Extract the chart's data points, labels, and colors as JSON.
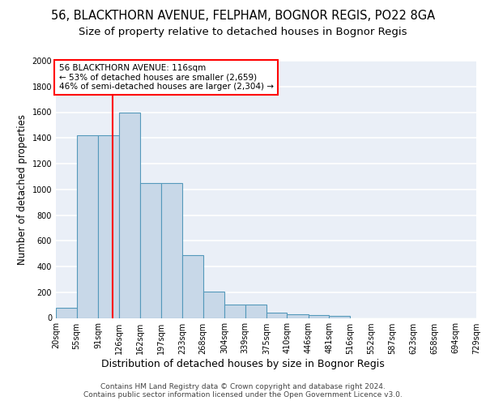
{
  "title1": "56, BLACKTHORN AVENUE, FELPHAM, BOGNOR REGIS, PO22 8GA",
  "title2": "Size of property relative to detached houses in Bognor Regis",
  "xlabel": "Distribution of detached houses by size in Bognor Regis",
  "ylabel": "Number of detached properties",
  "footer1": "Contains HM Land Registry data © Crown copyright and database right 2024.",
  "footer2": "Contains public sector information licensed under the Open Government Licence v3.0.",
  "bin_edges": [
    20,
    55,
    91,
    126,
    162,
    197,
    233,
    268,
    304,
    339,
    375,
    410,
    446,
    481,
    516,
    552,
    587,
    623,
    658,
    694,
    729
  ],
  "bar_heights": [
    80,
    1420,
    1420,
    1600,
    1050,
    1050,
    490,
    205,
    105,
    105,
    40,
    30,
    20,
    15,
    0,
    0,
    0,
    0,
    0,
    0
  ],
  "bar_color": "#c8d8e8",
  "bar_edge_color": "#5599bb",
  "bar_edge_width": 0.8,
  "red_line_x": 116,
  "annotation_line1": "56 BLACKTHORN AVENUE: 116sqm",
  "annotation_line2": "← 53% of detached houses are smaller (2,659)",
  "annotation_line3": "46% of semi-detached houses are larger (2,304) →",
  "annotation_box_color": "white",
  "annotation_box_edge_color": "red",
  "ylim": [
    0,
    2000
  ],
  "xlim_left": 20,
  "xlim_right": 729,
  "background_color": "#eaeff7",
  "grid_color": "white",
  "title1_fontsize": 10.5,
  "title2_fontsize": 9.5,
  "xlabel_fontsize": 9,
  "ylabel_fontsize": 8.5,
  "tick_fontsize": 7,
  "footer_fontsize": 6.5,
  "annotation_fontsize": 7.5
}
